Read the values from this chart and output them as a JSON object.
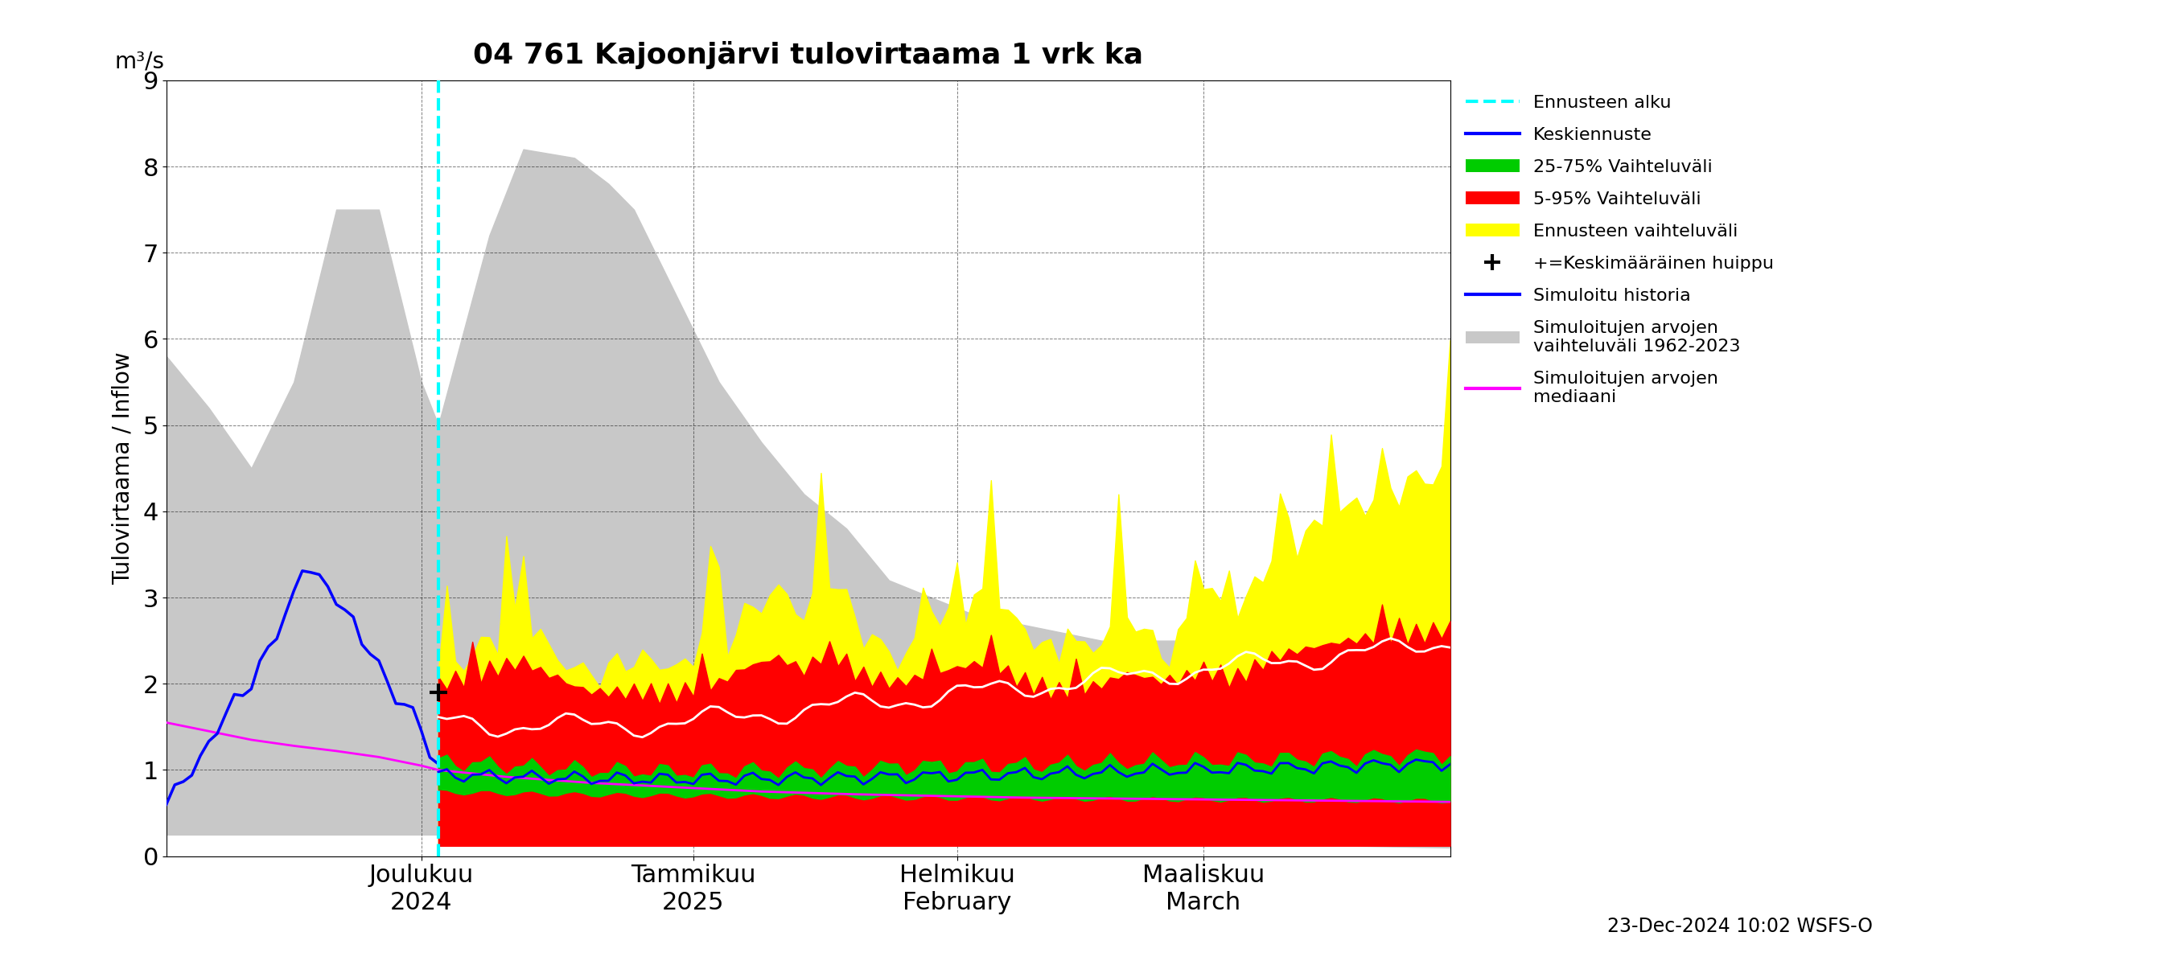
{
  "title": "04 761 Kajoonjärvi tulovirtaama 1 vrk ka",
  "ylabel": "Tulovirtaama / Inflow",
  "ylabel_unit": "m³/s",
  "timestamp_text": "23-Dec-2024 10:02 WSFS-O",
  "xtick_positions": [
    30,
    62,
    93,
    122
  ],
  "xtick_labels": [
    "Joulukuu\n2024",
    "Tammikuu\n2025",
    "Helmikuu\nFebruary",
    "Maaliskuu\nMarch"
  ],
  "ylim": [
    0,
    9
  ],
  "yticks": [
    0,
    1,
    2,
    3,
    4,
    5,
    6,
    7,
    8,
    9
  ],
  "forecast_start": 32,
  "n_total": 152,
  "colors": {
    "gray": "#c8c8c8",
    "yellow": "#ffff00",
    "red": "#ff0000",
    "green": "#00cc00",
    "blue": "#0000ff",
    "white": "#ffffff",
    "magenta": "#ff00ff",
    "cyan": "#00ffff",
    "black": "#000000"
  }
}
